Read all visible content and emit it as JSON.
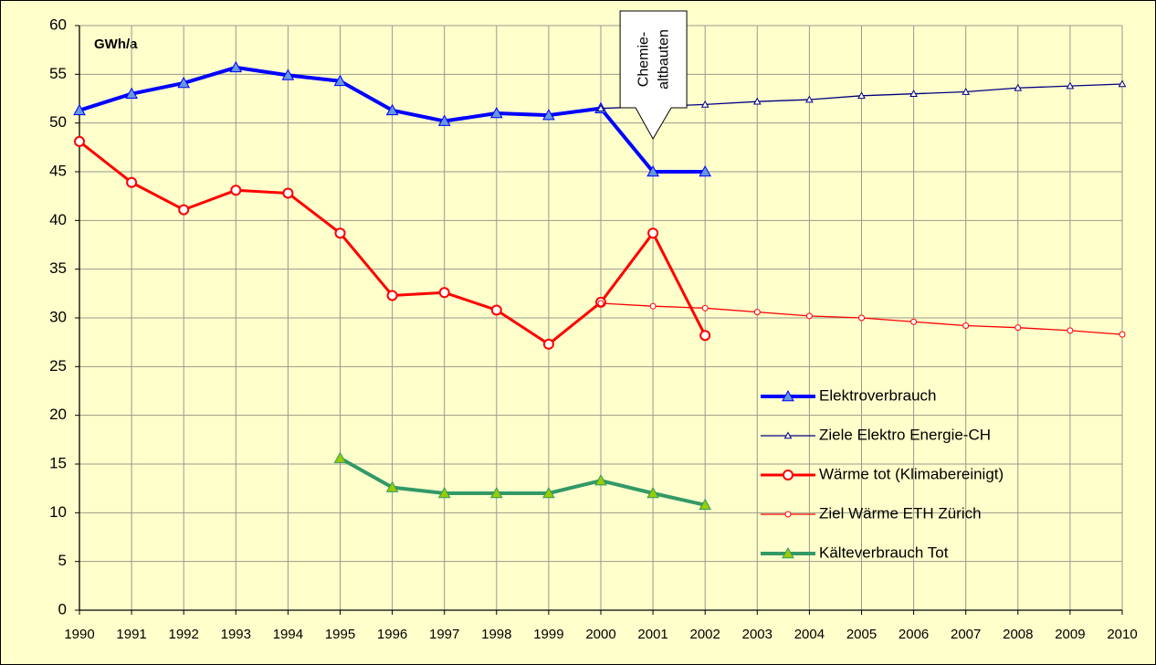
{
  "chart_data": {
    "type": "line",
    "unit_label": "GWh/a",
    "annotation": [
      "Chemie-",
      "altbauten"
    ],
    "annotation_category": "2001",
    "categories": [
      "1990",
      "1991",
      "1992",
      "1993",
      "1994",
      "1995",
      "1996",
      "1997",
      "1998",
      "1999",
      "2000",
      "2001",
      "2002",
      "2003",
      "2004",
      "2005",
      "2006",
      "2007",
      "2008",
      "2009",
      "2010"
    ],
    "ylim": [
      0,
      60
    ],
    "yticks": [
      0,
      5,
      10,
      15,
      20,
      25,
      30,
      35,
      40,
      45,
      50,
      55,
      60
    ],
    "grid": true,
    "legend": "right",
    "series": [
      {
        "name": "Elektroverbrauch",
        "color": "#0000ff",
        "marker": "triangle",
        "marker_color": "#6699dd",
        "line_width": 4,
        "values": [
          51.3,
          53.0,
          54.1,
          55.7,
          54.9,
          54.3,
          51.3,
          50.2,
          51.0,
          50.8,
          51.5,
          45.0,
          45.0,
          null,
          null,
          null,
          null,
          null,
          null,
          null,
          null
        ]
      },
      {
        "name": "Ziele Elektro Energie-CH",
        "color": "#000080",
        "marker": "triangle",
        "marker_color": "#ffffff",
        "line_width": 1.3,
        "values": [
          null,
          null,
          null,
          null,
          null,
          null,
          null,
          null,
          null,
          null,
          51.5,
          51.7,
          51.9,
          52.2,
          52.4,
          52.8,
          53.0,
          53.2,
          53.6,
          53.8,
          54.0
        ]
      },
      {
        "name": "Wärme tot (Klimabereinigt)",
        "color": "#ff0000",
        "marker": "circle",
        "marker_color": "#ffffff",
        "line_width": 3,
        "values": [
          48.1,
          43.9,
          41.1,
          43.1,
          42.8,
          38.7,
          32.3,
          32.6,
          30.8,
          27.3,
          31.6,
          38.7,
          28.2,
          null,
          null,
          null,
          null,
          null,
          null,
          null,
          null
        ]
      },
      {
        "name": "Ziel Wärme ETH Zürich",
        "color": "#ff0000",
        "marker": "circle",
        "marker_color": "#ffffff",
        "line_width": 1.3,
        "values": [
          null,
          null,
          null,
          null,
          null,
          null,
          null,
          null,
          null,
          null,
          31.5,
          31.2,
          31.0,
          30.6,
          30.2,
          30.0,
          29.6,
          29.2,
          29.0,
          28.7,
          28.3
        ]
      },
      {
        "name": "Kälteverbrauch Tot",
        "color": "#339966",
        "marker": "triangle",
        "marker_color": "#99cc00",
        "line_width": 4,
        "values": [
          null,
          null,
          null,
          null,
          null,
          15.6,
          12.6,
          12.0,
          12.0,
          12.0,
          13.3,
          12.0,
          10.8,
          null,
          null,
          null,
          null,
          null,
          null,
          null,
          null
        ]
      }
    ]
  }
}
